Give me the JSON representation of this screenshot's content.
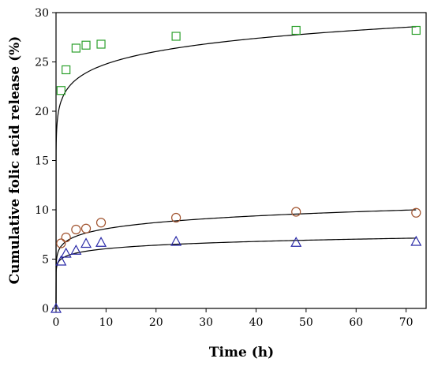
{
  "chart_data": {
    "type": "scatter",
    "title": "",
    "xlabel": "Time (h)",
    "ylabel": "Cumulative folic acid release (%)",
    "xlim": [
      0,
      74
    ],
    "ylim": [
      0,
      30
    ],
    "xticks": [
      0,
      10,
      20,
      30,
      40,
      50,
      60,
      70
    ],
    "yticks": [
      0,
      5,
      10,
      15,
      20,
      25,
      30
    ],
    "grid": false,
    "legend": "none",
    "series": [
      {
        "marker": "square",
        "color": "#2ca02c",
        "x": [
          1,
          2,
          4,
          6,
          9,
          24,
          48,
          72
        ],
        "y": [
          22.1,
          24.2,
          26.4,
          26.7,
          26.8,
          27.6,
          28.2,
          28.2
        ],
        "fit": {
          "a": 21.0,
          "b": 0.072
        }
      },
      {
        "marker": "circle",
        "color": "#a0522d",
        "x": [
          1,
          2,
          4,
          6,
          9,
          24,
          48,
          72
        ],
        "y": [
          6.6,
          7.2,
          8.0,
          8.1,
          8.7,
          9.2,
          9.8,
          9.7
        ],
        "fit": {
          "a": 6.3,
          "b": 0.108
        }
      },
      {
        "marker": "triangle",
        "color": "#2a2aa8",
        "x": [
          0,
          1,
          2,
          4,
          6,
          9,
          24,
          48,
          72
        ],
        "y": [
          0,
          4.8,
          5.6,
          5.9,
          6.6,
          6.7,
          6.8,
          6.7,
          6.8
        ],
        "fit": {
          "a": 5.0,
          "b": 0.083
        }
      }
    ]
  }
}
